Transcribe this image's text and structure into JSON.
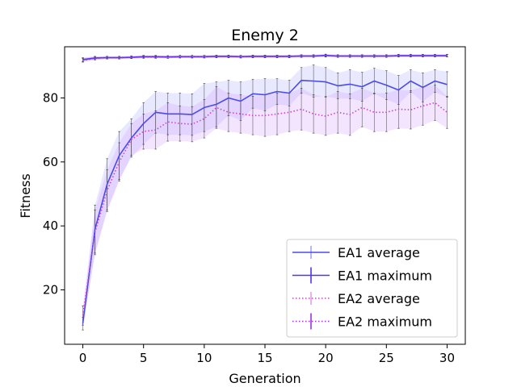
{
  "chart_data": {
    "type": "line",
    "title": "Enemy 2",
    "xlabel": "Generation",
    "ylabel": "Fitness",
    "xlim": [
      -1.5,
      31.5
    ],
    "ylim": [
      3,
      96
    ],
    "x_ticks": [
      0,
      5,
      10,
      15,
      20,
      25,
      30
    ],
    "y_ticks": [
      20,
      40,
      60,
      80
    ],
    "grid": false,
    "legend_position": "lower-right",
    "x": [
      0,
      1,
      2,
      3,
      4,
      5,
      6,
      7,
      8,
      9,
      10,
      11,
      12,
      13,
      14,
      15,
      16,
      17,
      18,
      19,
      20,
      21,
      22,
      23,
      24,
      25,
      26,
      27,
      28,
      29,
      30
    ],
    "series": [
      {
        "name": "EA1 average",
        "style": "solid",
        "color": "#4a4aee",
        "values": [
          9.5,
          39,
          53,
          62,
          67.5,
          72,
          75.5,
          75,
          75,
          74.8,
          77,
          78,
          80,
          79,
          81.3,
          81,
          82,
          81.5,
          85.5,
          85.3,
          85,
          83.8,
          84.3,
          83.5,
          85.3,
          84,
          82.5,
          85.3,
          83.3,
          85.3,
          84.2
        ],
        "errors": [
          2,
          7.5,
          8,
          7.5,
          6,
          6.5,
          6.5,
          6.5,
          6.5,
          6.5,
          7.5,
          7,
          5.5,
          6,
          4.5,
          5,
          4,
          4,
          4,
          5,
          4.5,
          4,
          4.5,
          4.5,
          4,
          4.5,
          4.5,
          3.5,
          4.5,
          3.5,
          4
        ]
      },
      {
        "name": "EA1 maximum",
        "style": "solid",
        "color": "#4a4aee",
        "values": [
          92,
          92.5,
          92.6,
          92.6,
          92.7,
          92.9,
          92.9,
          92.8,
          92.9,
          92.9,
          92.9,
          93,
          93,
          92.9,
          93,
          93,
          93,
          93,
          93.1,
          93.1,
          93.3,
          93.1,
          93.1,
          93.1,
          93.1,
          93.1,
          93.2,
          93.2,
          93.2,
          93.2,
          93.2
        ],
        "errors": [
          0.6,
          0.5,
          0.4,
          0.4,
          0.4,
          0.4,
          0.4,
          0.4,
          0.4,
          0.4,
          0.4,
          0.4,
          0.4,
          0.4,
          0.4,
          0.4,
          0.4,
          0.4,
          0.4,
          0.4,
          0.4,
          0.4,
          0.4,
          0.4,
          0.4,
          0.4,
          0.4,
          0.4,
          0.4,
          0.4,
          0.4
        ]
      },
      {
        "name": "EA2 average",
        "style": "dotted",
        "color": "#cc44cc",
        "values": [
          12,
          38,
          51,
          60,
          67,
          69.5,
          70,
          72.5,
          72,
          71.8,
          73.5,
          77,
          75.5,
          75,
          74.5,
          74.5,
          75,
          75.5,
          76.5,
          75,
          74.3,
          75.5,
          74.8,
          77,
          75.5,
          75.5,
          76.5,
          76.3,
          77.5,
          78.5,
          75.5
        ],
        "errors": [
          3,
          7,
          6.5,
          6,
          5,
          5.5,
          6,
          6,
          5.5,
          5.5,
          6,
          6.5,
          6,
          6,
          6,
          6.5,
          6.5,
          6,
          6.5,
          6,
          6,
          6.5,
          6.5,
          6,
          6,
          6,
          6,
          6,
          6,
          5.5,
          5
        ]
      },
      {
        "name": "EA2 maximum",
        "style": "dotted",
        "color": "#cc44cc",
        "values": [
          91.8,
          92.4,
          92.6,
          92.6,
          92.7,
          92.8,
          92.8,
          92.8,
          92.9,
          92.9,
          92.9,
          93,
          93,
          92.9,
          93,
          93,
          93,
          93,
          93.1,
          93.1,
          93.2,
          93.1,
          93.1,
          93.1,
          93.1,
          93.1,
          93.2,
          93.2,
          93.2,
          93.2,
          93.2
        ],
        "errors": [
          0.6,
          0.5,
          0.4,
          0.4,
          0.4,
          0.4,
          0.4,
          0.4,
          0.4,
          0.4,
          0.4,
          0.4,
          0.4,
          0.4,
          0.4,
          0.4,
          0.4,
          0.4,
          0.4,
          0.4,
          0.4,
          0.4,
          0.4,
          0.4,
          0.4,
          0.4,
          0.4,
          0.4,
          0.4,
          0.4,
          0.4
        ]
      }
    ],
    "shading_colors": {
      "EA1": "#8080ff",
      "EA2": "#d8a0ff",
      "max": "#7b2cff"
    }
  }
}
